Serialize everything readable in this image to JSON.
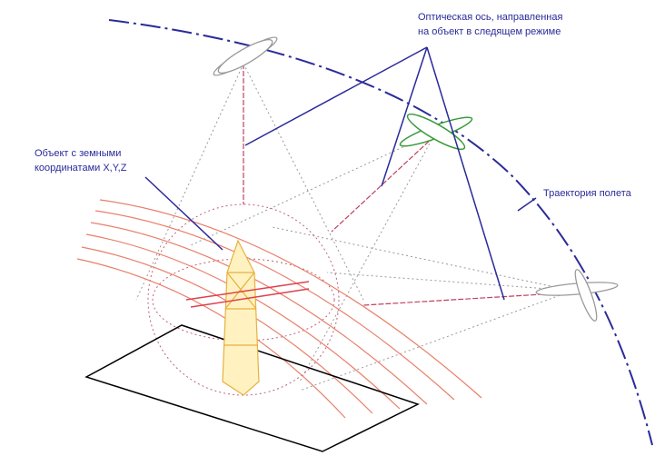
{
  "labels": {
    "optical_axis": [
      "Оптическая ось, направленная",
      "на объект в следящем режиме"
    ],
    "object": [
      "Объект с земными",
      "координатами X,Y,Z"
    ],
    "trajectory": "Траектория полета"
  }
}
